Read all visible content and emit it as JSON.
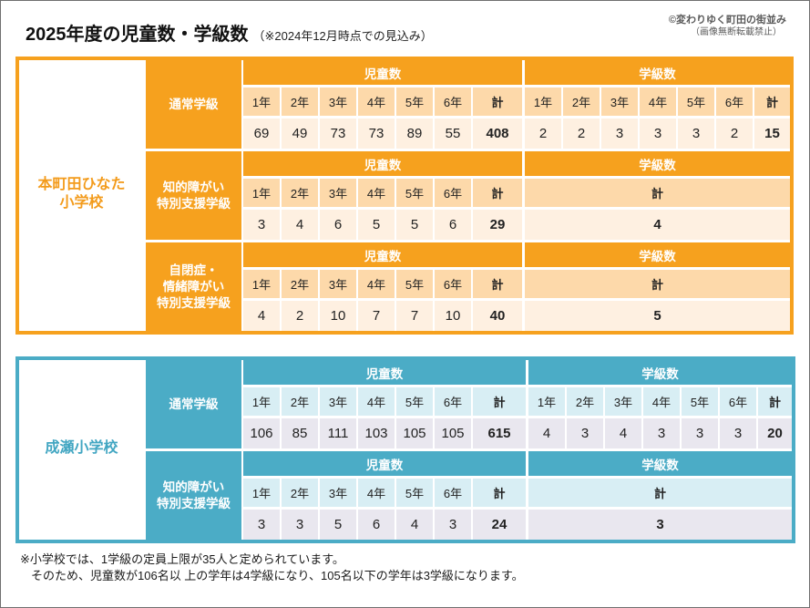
{
  "header": {
    "title": "2025年度の児童数・学級数",
    "subtitle": "（※2024年12月時点での見込み）",
    "credit": "©変わりゆく町田の街並み",
    "credit_note": "（画像無断転載禁止）"
  },
  "table_headers": {
    "students": "児童数",
    "classes": "学級数",
    "grades": [
      "1年",
      "2年",
      "3年",
      "4年",
      "5年",
      "6年"
    ],
    "total": "計"
  },
  "schools": [
    {
      "name_lines": [
        "本町田ひなた",
        "小学校"
      ],
      "colors": {
        "accent": "#F6A11E",
        "name_text": "#F39B1B",
        "light_row": "#FDD9AA",
        "pale_row": "#FEF0E1"
      },
      "sections": [
        {
          "label_lines": [
            "通常学級"
          ],
          "students": [
            69,
            49,
            73,
            73,
            89,
            55
          ],
          "students_total": 408,
          "classes": [
            2,
            2,
            3,
            3,
            3,
            2
          ],
          "classes_total": 15
        },
        {
          "label_lines": [
            "知的障がい",
            "特別支援学級"
          ],
          "students": [
            3,
            4,
            6,
            5,
            5,
            6
          ],
          "students_total": 29,
          "classes_total": 4
        },
        {
          "label_lines": [
            "自閉症・",
            "情緒障がい",
            "特別支援学級"
          ],
          "students": [
            4,
            2,
            10,
            7,
            7,
            10
          ],
          "students_total": 40,
          "classes_total": 5
        }
      ]
    },
    {
      "name_lines": [
        "成瀬小学校"
      ],
      "colors": {
        "accent": "#4BACC6",
        "name_text": "#42A6C2",
        "light_row": "#D8EEF4",
        "pale_row": "#E9E7EF"
      },
      "sections": [
        {
          "label_lines": [
            "通常学級"
          ],
          "students": [
            106,
            85,
            111,
            103,
            105,
            105
          ],
          "students_total": 615,
          "classes": [
            4,
            3,
            4,
            3,
            3,
            3
          ],
          "classes_total": 20
        },
        {
          "label_lines": [
            "知的障がい",
            "特別支援学級"
          ],
          "students": [
            3,
            3,
            5,
            6,
            4,
            3
          ],
          "students_total": 24,
          "classes_total": 3
        }
      ]
    }
  ],
  "notes": [
    "※小学校では、1学級の定員上限が35人と定められています。",
    "そのため、児童数が106名以 上の学年は4学級になり、105名以下の学年は3学級になります。"
  ]
}
